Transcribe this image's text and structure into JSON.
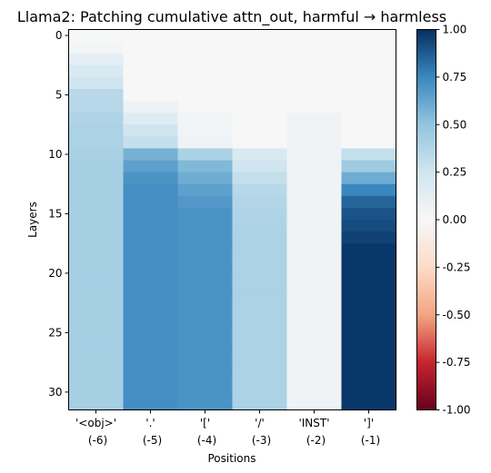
{
  "chart_data": {
    "type": "heatmap",
    "title": "Llama2: Patching cumulative attn_out, harmful → harmless",
    "xlabel": "Positions",
    "ylabel": "Layers",
    "x_tick_labels": [
      [
        "'<obj>'",
        "(-6)"
      ],
      [
        "'.'",
        "(-5)"
      ],
      [
        "'['",
        "(-4)"
      ],
      [
        "'/'",
        "(-3)"
      ],
      [
        "'INST'",
        "(-2)"
      ],
      [
        "']'",
        "(-1)"
      ]
    ],
    "y_ticks": [
      0,
      5,
      10,
      15,
      20,
      25,
      30
    ],
    "colorbar": {
      "colormap": "RdBu",
      "min": -1.0,
      "max": 1.0,
      "ticks": [
        "1.00",
        "0.75",
        "0.50",
        "0.25",
        "0.00",
        "-0.25",
        "-0.50",
        "-0.75",
        "-1.00"
      ]
    },
    "columns": [
      {
        "position": "'<obj>'",
        "values": [
          0.0,
          0.03,
          0.12,
          0.2,
          0.25,
          0.35,
          0.36,
          0.38,
          0.4,
          0.4,
          0.41,
          0.42,
          0.42,
          0.42,
          0.42,
          0.42,
          0.42,
          0.42,
          0.42,
          0.42,
          0.42,
          0.42,
          0.42,
          0.42,
          0.42,
          0.42,
          0.42,
          0.42,
          0.42,
          0.42,
          0.42,
          0.42
        ]
      },
      {
        "position": "'.'",
        "values": [
          0.0,
          0.0,
          0.0,
          0.0,
          0.0,
          0.0,
          0.07,
          0.15,
          0.25,
          0.3,
          0.58,
          0.65,
          0.7,
          0.72,
          0.72,
          0.72,
          0.72,
          0.72,
          0.72,
          0.72,
          0.72,
          0.72,
          0.72,
          0.72,
          0.72,
          0.72,
          0.72,
          0.72,
          0.72,
          0.72,
          0.72,
          0.72
        ]
      },
      {
        "position": "'['",
        "values": [
          0.0,
          0.0,
          0.0,
          0.0,
          0.0,
          0.0,
          0.0,
          0.03,
          0.04,
          0.05,
          0.4,
          0.55,
          0.6,
          0.65,
          0.68,
          0.7,
          0.7,
          0.7,
          0.7,
          0.7,
          0.7,
          0.7,
          0.7,
          0.7,
          0.7,
          0.7,
          0.7,
          0.7,
          0.7,
          0.7,
          0.7,
          0.7
        ]
      },
      {
        "position": "'/'",
        "values": [
          0.0,
          0.0,
          0.0,
          0.0,
          0.0,
          0.0,
          0.0,
          0.0,
          0.0,
          0.0,
          0.2,
          0.25,
          0.3,
          0.35,
          0.37,
          0.38,
          0.39,
          0.4,
          0.4,
          0.4,
          0.4,
          0.4,
          0.4,
          0.4,
          0.4,
          0.4,
          0.4,
          0.4,
          0.4,
          0.4,
          0.4,
          0.4
        ]
      },
      {
        "position": "'INST'",
        "values": [
          0.0,
          0.0,
          0.0,
          0.0,
          0.0,
          0.0,
          0.0,
          0.05,
          0.05,
          0.05,
          0.05,
          0.05,
          0.05,
          0.05,
          0.05,
          0.05,
          0.05,
          0.05,
          0.05,
          0.05,
          0.05,
          0.05,
          0.05,
          0.05,
          0.05,
          0.05,
          0.05,
          0.05,
          0.05,
          0.05,
          0.05,
          0.05
        ]
      },
      {
        "position": "']'",
        "values": [
          0.0,
          0.0,
          0.0,
          0.0,
          0.0,
          0.0,
          0.0,
          0.0,
          0.0,
          0.0,
          0.3,
          0.45,
          0.6,
          0.75,
          0.85,
          0.9,
          0.92,
          0.95,
          0.98,
          0.98,
          0.98,
          0.98,
          0.98,
          0.98,
          0.98,
          0.98,
          0.98,
          0.98,
          0.98,
          0.98,
          0.98,
          0.98
        ]
      }
    ]
  }
}
